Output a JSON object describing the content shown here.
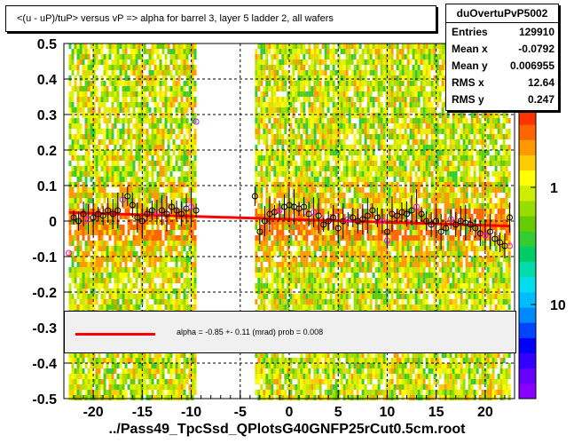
{
  "title": "<(u - uP)/tuP> versus   vP => alpha for barrel 3, layer 5 ladder 2, all wafers",
  "stats": {
    "name": "duOvertuPvP5002",
    "rows": [
      {
        "label": "Entries",
        "value": "129910"
      },
      {
        "label": "Mean x",
        "value": "-0.0792"
      },
      {
        "label": "Mean y",
        "value": "0.006955"
      },
      {
        "label": "RMS x",
        "value": "12.64"
      },
      {
        "label": "RMS y",
        "value": "0.247"
      }
    ]
  },
  "legend": {
    "text": "alpha =   -0.85 +-  0.11 (mrad) prob = 0.008",
    "color": "#ff0000"
  },
  "xlabel": "../Pass49_TpcSsd_QPlotsG40GNFP25rCut0.5cm.root",
  "colors": {
    "fit": "#ff0000",
    "profile": "#000000",
    "profile_alt": "#ff00ff"
  },
  "chart_data": {
    "type": "heatmap",
    "xlim": [
      -23,
      23
    ],
    "ylim": [
      -0.5,
      0.5
    ],
    "x_ticks": [
      "-20",
      "-15",
      "-10",
      "-5",
      "0",
      "5",
      "10",
      "15",
      "20"
    ],
    "y_ticks": [
      "-0.5",
      "-0.4",
      "-0.3",
      "-0.2",
      "-0.1",
      "0",
      "0.1",
      "0.2",
      "0.3",
      "0.4",
      "0.5"
    ],
    "z_scale": "log",
    "z_ticks": [
      "1",
      "10"
    ],
    "grid": true,
    "occupied_x_ranges": [
      [
        -22.5,
        -9.5
      ],
      [
        -3.5,
        2.5
      ],
      [
        2.5,
        22.5
      ]
    ],
    "fit_line": {
      "x": [
        -22.5,
        22.5
      ],
      "y": [
        0.024,
        -0.014
      ]
    },
    "profile_points": [
      {
        "x": -22,
        "y": 0.01
      },
      {
        "x": -21.5,
        "y": 0.0
      },
      {
        "x": -21,
        "y": 0.02
      },
      {
        "x": -20.5,
        "y": 0.005
      },
      {
        "x": -20,
        "y": 0.01
      },
      {
        "x": -19.5,
        "y": 0.02
      },
      {
        "x": -19,
        "y": 0.015
      },
      {
        "x": -18.5,
        "y": 0.03
      },
      {
        "x": -18,
        "y": 0.02
      },
      {
        "x": -17.5,
        "y": 0.03
      },
      {
        "x": -17,
        "y": 0.06
      },
      {
        "x": -16.5,
        "y": 0.07
      },
      {
        "x": -16,
        "y": 0.045
      },
      {
        "x": -15.5,
        "y": 0.01
      },
      {
        "x": -15,
        "y": 0.0
      },
      {
        "x": -14.5,
        "y": 0.02
      },
      {
        "x": -14,
        "y": 0.03
      },
      {
        "x": -13.5,
        "y": 0.025
      },
      {
        "x": -13,
        "y": 0.03
      },
      {
        "x": -12.5,
        "y": 0.02
      },
      {
        "x": -12,
        "y": 0.04
      },
      {
        "x": -11.5,
        "y": 0.03
      },
      {
        "x": -11,
        "y": 0.02
      },
      {
        "x": -10.5,
        "y": 0.035
      },
      {
        "x": -10,
        "y": 0.04
      },
      {
        "x": -9.5,
        "y": 0.03
      },
      {
        "x": -3.5,
        "y": 0.07
      },
      {
        "x": -3,
        "y": -0.03
      },
      {
        "x": -2.5,
        "y": 0.0
      },
      {
        "x": -2,
        "y": 0.02
      },
      {
        "x": -1.5,
        "y": 0.025
      },
      {
        "x": -1,
        "y": 0.03
      },
      {
        "x": -0.5,
        "y": 0.04
      },
      {
        "x": 0,
        "y": 0.045
      },
      {
        "x": 0.5,
        "y": 0.04
      },
      {
        "x": 1,
        "y": 0.035
      },
      {
        "x": 1.5,
        "y": 0.04
      },
      {
        "x": 2,
        "y": 0.02
      },
      {
        "x": 2.5,
        "y": 0.025
      },
      {
        "x": 3,
        "y": 0.015
      },
      {
        "x": 3.5,
        "y": -0.01
      },
      {
        "x": 4,
        "y": 0.0
      },
      {
        "x": 4.5,
        "y": 0.01
      },
      {
        "x": 5,
        "y": -0.02
      },
      {
        "x": 5.5,
        "y": 0.0
      },
      {
        "x": 6,
        "y": 0.005
      },
      {
        "x": 6.5,
        "y": 0.01
      },
      {
        "x": 7,
        "y": 0.0
      },
      {
        "x": 7.5,
        "y": 0.005
      },
      {
        "x": 8,
        "y": 0.015
      },
      {
        "x": 8.5,
        "y": 0.03
      },
      {
        "x": 9,
        "y": 0.01
      },
      {
        "x": 9.5,
        "y": 0.0
      },
      {
        "x": 10,
        "y": -0.03
      },
      {
        "x": 10.5,
        "y": 0.02
      },
      {
        "x": 11,
        "y": 0.015
      },
      {
        "x": 11.5,
        "y": 0.025
      },
      {
        "x": 12,
        "y": 0.02
      },
      {
        "x": 12.5,
        "y": 0.03
      },
      {
        "x": 13,
        "y": 0.04
      },
      {
        "x": 13.5,
        "y": 0.02
      },
      {
        "x": 14,
        "y": 0.0
      },
      {
        "x": 14.5,
        "y": -0.01
      },
      {
        "x": 15,
        "y": 0.0
      },
      {
        "x": 15.5,
        "y": -0.03
      },
      {
        "x": 16,
        "y": -0.02
      },
      {
        "x": 16.5,
        "y": 0.005
      },
      {
        "x": 17,
        "y": -0.01
      },
      {
        "x": 17.5,
        "y": 0.0
      },
      {
        "x": 18,
        "y": -0.005
      },
      {
        "x": 18.5,
        "y": -0.01
      },
      {
        "x": 19,
        "y": -0.02
      },
      {
        "x": 19.5,
        "y": -0.035
      },
      {
        "x": 20,
        "y": -0.04
      },
      {
        "x": 20.5,
        "y": -0.03
      },
      {
        "x": 21,
        "y": -0.05
      },
      {
        "x": 21.5,
        "y": -0.06
      },
      {
        "x": 22,
        "y": -0.07
      },
      {
        "x": 22.5,
        "y": 0.01
      }
    ],
    "outlier_points": [
      {
        "x": -22.5,
        "y": -0.09
      },
      {
        "x": -9.5,
        "y": 0.28
      },
      {
        "x": 10,
        "y": -0.055
      },
      {
        "x": 22.5,
        "y": -0.07
      }
    ]
  }
}
